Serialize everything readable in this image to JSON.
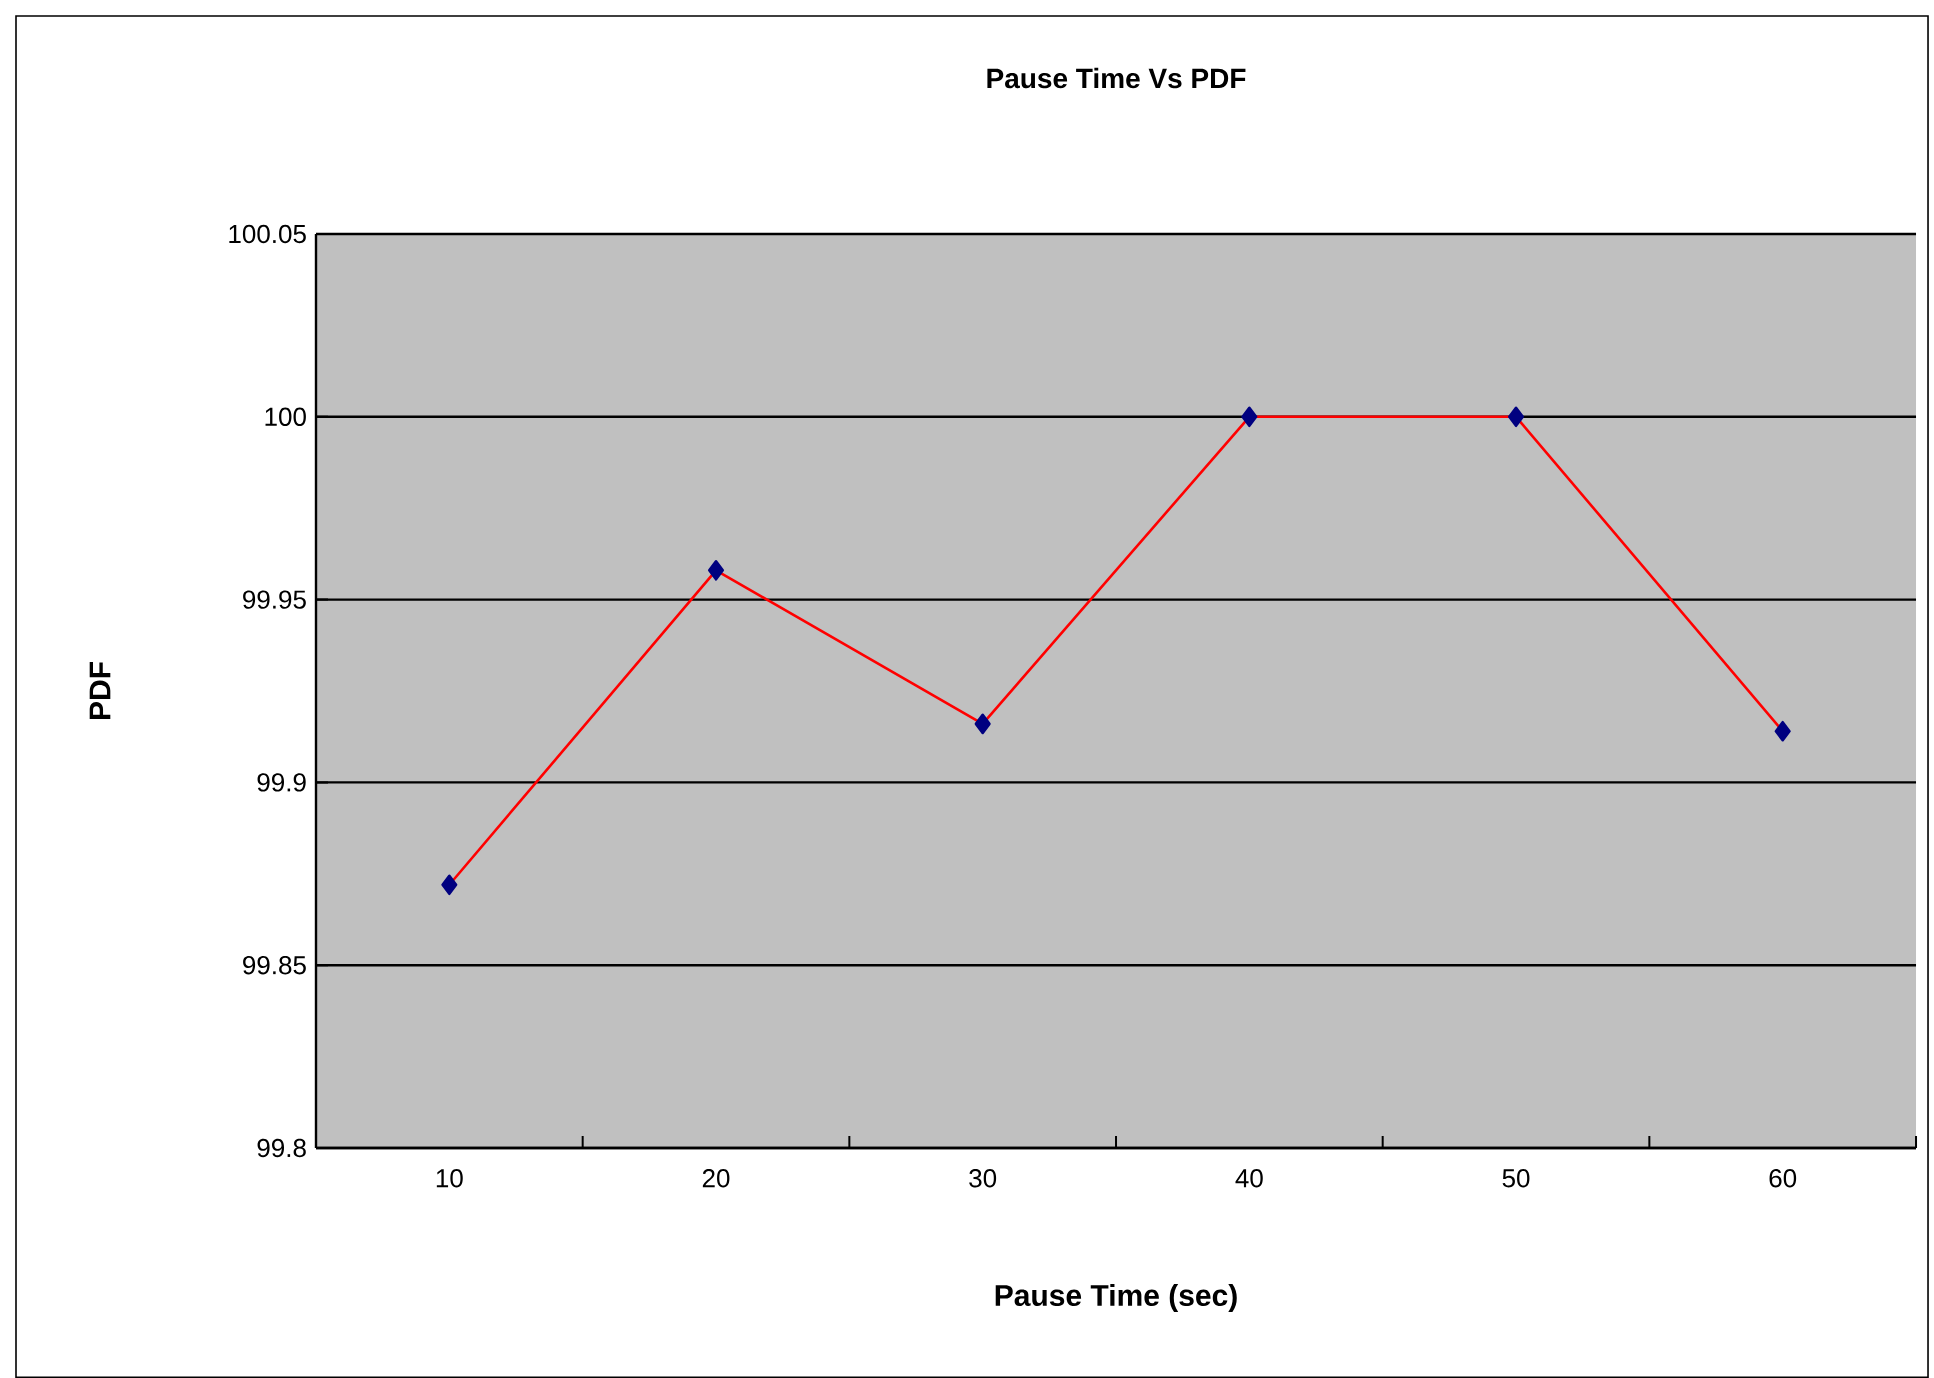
{
  "chart_data": {
    "type": "line",
    "title": "Pause Time Vs PDF",
    "xlabel": "Pause Time (sec)",
    "ylabel": "PDF",
    "categories": [
      "10",
      "20",
      "30",
      "40",
      "50",
      "60"
    ],
    "series": [
      {
        "color": "#ff0000",
        "values": [
          99.872,
          99.958,
          99.916,
          100,
          100,
          99.914
        ]
      }
    ],
    "marker": "diamond",
    "line_style": "solid",
    "ylim": [
      99.8,
      100.05
    ],
    "yticks": [
      99.8,
      99.85,
      99.9,
      99.95,
      100,
      100.05
    ],
    "grid": "y"
  }
}
